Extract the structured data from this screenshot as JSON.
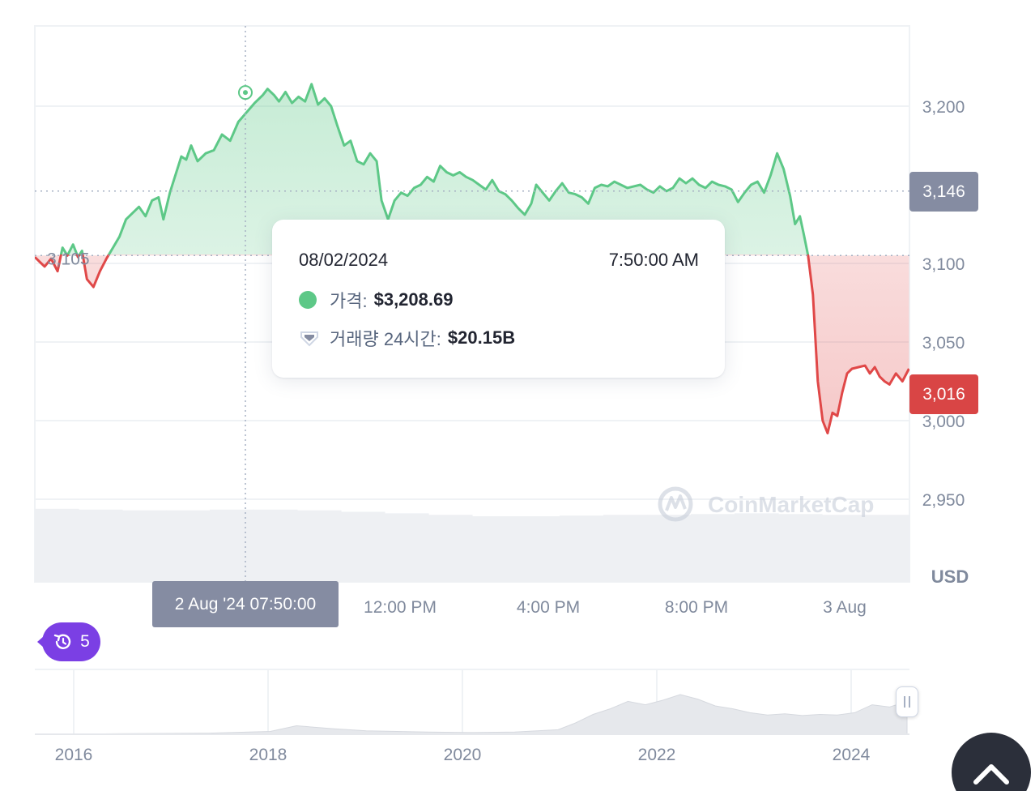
{
  "chart_data": {
    "type": "area",
    "x_range": [
      "02 Aug 05:30",
      "03 Aug 05:30"
    ],
    "x_ticks": [
      "12:00 PM",
      "4:00 PM",
      "8:00 PM",
      "3 Aug"
    ],
    "y_ticks": [
      2950,
      3000,
      3050,
      3100,
      3200
    ],
    "y_tick_labels": [
      "2,950",
      "3,000",
      "3,050",
      "3,100",
      "3,200"
    ],
    "ylim": [
      2900,
      3250
    ],
    "unit": "USD",
    "baseline_value": 3105,
    "baseline_label": "3,105",
    "current_price": 3146,
    "current_price_label": "3,146",
    "last_price": 3016,
    "last_price_label": "3,016",
    "price_series": [
      [
        0.0,
        3104
      ],
      [
        0.006,
        3101
      ],
      [
        0.012,
        3098
      ],
      [
        0.02,
        3103
      ],
      [
        0.028,
        3095
      ],
      [
        0.034,
        3110
      ],
      [
        0.04,
        3105
      ],
      [
        0.047,
        3112
      ],
      [
        0.053,
        3104
      ],
      [
        0.058,
        3108
      ],
      [
        0.064,
        3090
      ],
      [
        0.072,
        3085
      ],
      [
        0.08,
        3095
      ],
      [
        0.088,
        3103
      ],
      [
        0.096,
        3110
      ],
      [
        0.104,
        3117
      ],
      [
        0.112,
        3128
      ],
      [
        0.12,
        3132
      ],
      [
        0.128,
        3136
      ],
      [
        0.136,
        3130
      ],
      [
        0.144,
        3140
      ],
      [
        0.152,
        3142
      ],
      [
        0.158,
        3128
      ],
      [
        0.166,
        3145
      ],
      [
        0.172,
        3155
      ],
      [
        0.18,
        3168
      ],
      [
        0.186,
        3166
      ],
      [
        0.192,
        3175
      ],
      [
        0.2,
        3165
      ],
      [
        0.21,
        3170
      ],
      [
        0.22,
        3172
      ],
      [
        0.23,
        3182
      ],
      [
        0.24,
        3178
      ],
      [
        0.25,
        3190
      ],
      [
        0.26,
        3196
      ],
      [
        0.27,
        3202
      ],
      [
        0.28,
        3207
      ],
      [
        0.286,
        3211
      ],
      [
        0.294,
        3207
      ],
      [
        0.3,
        3203
      ],
      [
        0.308,
        3209
      ],
      [
        0.316,
        3202
      ],
      [
        0.324,
        3206
      ],
      [
        0.332,
        3203
      ],
      [
        0.34,
        3214
      ],
      [
        0.348,
        3201
      ],
      [
        0.356,
        3205
      ],
      [
        0.364,
        3200
      ],
      [
        0.372,
        3187
      ],
      [
        0.38,
        3175
      ],
      [
        0.388,
        3178
      ],
      [
        0.396,
        3165
      ],
      [
        0.404,
        3163
      ],
      [
        0.412,
        3170
      ],
      [
        0.42,
        3165
      ],
      [
        0.426,
        3140
      ],
      [
        0.434,
        3128
      ],
      [
        0.442,
        3140
      ],
      [
        0.45,
        3145
      ],
      [
        0.458,
        3143
      ],
      [
        0.466,
        3148
      ],
      [
        0.474,
        3150
      ],
      [
        0.482,
        3155
      ],
      [
        0.49,
        3152
      ],
      [
        0.498,
        3162
      ],
      [
        0.506,
        3158
      ],
      [
        0.514,
        3156
      ],
      [
        0.522,
        3158
      ],
      [
        0.53,
        3155
      ],
      [
        0.538,
        3153
      ],
      [
        0.546,
        3150
      ],
      [
        0.554,
        3147
      ],
      [
        0.562,
        3153
      ],
      [
        0.57,
        3146
      ],
      [
        0.578,
        3144
      ],
      [
        0.586,
        3140
      ],
      [
        0.594,
        3135
      ],
      [
        0.602,
        3131
      ],
      [
        0.61,
        3138
      ],
      [
        0.616,
        3150
      ],
      [
        0.624,
        3145
      ],
      [
        0.632,
        3140
      ],
      [
        0.64,
        3146
      ],
      [
        0.648,
        3151
      ],
      [
        0.656,
        3145
      ],
      [
        0.664,
        3144
      ],
      [
        0.672,
        3142
      ],
      [
        0.68,
        3138
      ],
      [
        0.688,
        3148
      ],
      [
        0.696,
        3150
      ],
      [
        0.704,
        3149
      ],
      [
        0.712,
        3152
      ],
      [
        0.72,
        3150
      ],
      [
        0.728,
        3148
      ],
      [
        0.736,
        3149
      ],
      [
        0.744,
        3150
      ],
      [
        0.752,
        3147
      ],
      [
        0.76,
        3145
      ],
      [
        0.768,
        3149
      ],
      [
        0.776,
        3146
      ],
      [
        0.784,
        3148
      ],
      [
        0.792,
        3154
      ],
      [
        0.8,
        3151
      ],
      [
        0.808,
        3154
      ],
      [
        0.816,
        3150
      ],
      [
        0.824,
        3148
      ],
      [
        0.832,
        3152
      ],
      [
        0.84,
        3150
      ],
      [
        0.848,
        3149
      ],
      [
        0.856,
        3147
      ],
      [
        0.864,
        3139
      ],
      [
        0.872,
        3145
      ],
      [
        0.88,
        3150
      ],
      [
        0.888,
        3152
      ],
      [
        0.896,
        3145
      ],
      [
        0.904,
        3156
      ],
      [
        0.912,
        3170
      ],
      [
        0.92,
        3160
      ],
      [
        0.928,
        3143
      ],
      [
        0.934,
        3125
      ],
      [
        0.94,
        3130
      ],
      [
        0.945,
        3118
      ],
      [
        0.95,
        3105
      ],
      [
        0.956,
        3080
      ],
      [
        0.962,
        3025
      ],
      [
        0.968,
        3000
      ],
      [
        0.974,
        2992
      ],
      [
        0.98,
        3005
      ],
      [
        0.986,
        3003
      ],
      [
        0.992,
        3018
      ],
      [
        0.998,
        3030
      ],
      [
        1.004,
        3033
      ],
      [
        1.012,
        3034
      ],
      [
        1.02,
        3035
      ],
      [
        1.026,
        3030
      ],
      [
        1.032,
        3034
      ],
      [
        1.038,
        3028
      ],
      [
        1.044,
        3025
      ],
      [
        1.05,
        3023
      ],
      [
        1.058,
        3030
      ],
      [
        1.066,
        3025
      ],
      [
        1.074,
        3033
      ]
    ],
    "volume_levels": [
      0.98,
      0.97,
      0.96,
      0.96,
      0.97,
      0.97,
      0.96,
      0.94,
      0.92,
      0.9,
      0.88,
      0.88,
      0.89,
      0.9,
      0.9,
      0.91,
      0.92,
      0.91,
      0.9,
      0.9
    ],
    "navigator_x_ticks": [
      "2016",
      "2018",
      "2020",
      "2022",
      "2024"
    ],
    "navigator_series": [
      [
        0.0,
        0.0
      ],
      [
        0.1,
        0.01
      ],
      [
        0.2,
        0.02
      ],
      [
        0.27,
        0.05
      ],
      [
        0.3,
        0.15
      ],
      [
        0.34,
        0.1
      ],
      [
        0.38,
        0.06
      ],
      [
        0.45,
        0.04
      ],
      [
        0.5,
        0.03
      ],
      [
        0.55,
        0.04
      ],
      [
        0.6,
        0.08
      ],
      [
        0.62,
        0.2
      ],
      [
        0.64,
        0.35
      ],
      [
        0.66,
        0.45
      ],
      [
        0.68,
        0.58
      ],
      [
        0.7,
        0.52
      ],
      [
        0.72,
        0.6
      ],
      [
        0.74,
        0.7
      ],
      [
        0.76,
        0.62
      ],
      [
        0.78,
        0.5
      ],
      [
        0.8,
        0.45
      ],
      [
        0.82,
        0.38
      ],
      [
        0.84,
        0.34
      ],
      [
        0.86,
        0.36
      ],
      [
        0.88,
        0.33
      ],
      [
        0.9,
        0.35
      ],
      [
        0.92,
        0.34
      ],
      [
        0.94,
        0.38
      ],
      [
        0.96,
        0.52
      ],
      [
        0.98,
        0.48
      ],
      [
        1.0,
        0.58
      ]
    ],
    "tooltip": {
      "date": "08/02/2024",
      "time": "7:50:00 AM",
      "price_label": "가격:",
      "price_value": "$3,208.69",
      "volume_label": "거래량 24시간:",
      "volume_value": "$20.15B"
    },
    "crosshair_x_label": "2 Aug '24 07:50:00",
    "watermark": "CoinMarketCap",
    "colors": {
      "up": "#5dc887",
      "down": "#e04848",
      "grid": "#eff2f5",
      "badge_current": "#858ca2",
      "badge_last": "#d94545"
    }
  },
  "ui": {
    "history_count": "5"
  }
}
